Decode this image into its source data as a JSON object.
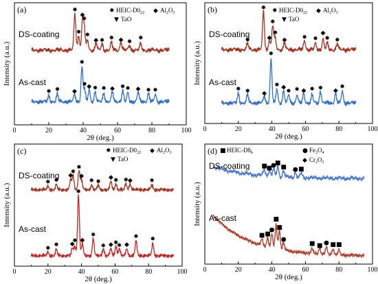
{
  "figure": {
    "title": ""
  },
  "chart_data": [
    {
      "panel": "(a)",
      "type": "line",
      "xlabel": "2θ (deg.)",
      "ylabel": "Intensity (a.u.)",
      "xlim": [
        0,
        100
      ],
      "xticks": [
        "0",
        "20",
        "40",
        "60",
        "80",
        "100"
      ],
      "legend": [
        {
          "symbol": "✸",
          "text": "HEIC-D0",
          "sub": "22"
        },
        {
          "symbol": "◆",
          "text": "Al",
          "sub": "2",
          "text2": "O",
          "sub2": "3"
        },
        {
          "symbol": "▼",
          "text": "TaO"
        }
      ],
      "series": [
        {
          "name": "DS-coating",
          "color": "#a8321e",
          "offset": 0.6,
          "x_range": [
            10,
            90
          ],
          "peaks": [
            [
              35.2,
              0.3
            ],
            [
              37.4,
              0.12
            ],
            [
              39.6,
              0.22
            ],
            [
              40.6,
              0.18
            ],
            [
              42.5,
              0.08
            ],
            [
              47.5,
              0.06
            ],
            [
              51.0,
              0.05
            ],
            [
              56.5,
              0.06
            ],
            [
              62.0,
              0.07
            ],
            [
              67.0,
              0.04
            ],
            [
              73.5,
              0.05
            ]
          ],
          "background": 0.06
        },
        {
          "name": "As-cast",
          "color": "#2f6fd0",
          "offset": 0.18,
          "x_range": [
            10,
            90
          ],
          "peaks": [
            [
              20.0,
              0.05
            ],
            [
              25.0,
              0.06
            ],
            [
              35.0,
              0.06
            ],
            [
              39.3,
              0.28
            ],
            [
              40.8,
              0.1
            ],
            [
              43.5,
              0.1
            ],
            [
              47.0,
              0.08
            ],
            [
              52.0,
              0.07
            ],
            [
              57.0,
              0.08
            ],
            [
              63.0,
              0.09
            ],
            [
              66.0,
              0.07
            ],
            [
              72.0,
              0.08
            ],
            [
              78.0,
              0.07
            ],
            [
              82.0,
              0.06
            ]
          ],
          "background": 0.05
        }
      ]
    },
    {
      "panel": "(b)",
      "type": "line",
      "xlabel": "2θ (deg.)",
      "ylabel": "Intensity (a.u.)",
      "xlim": [
        0,
        100
      ],
      "xticks": [
        "0",
        "20",
        "40",
        "60",
        "80",
        "100"
      ],
      "legend": [
        {
          "symbol": "✸",
          "text": "HEIC-D0",
          "sub": "22"
        },
        {
          "symbol": "◆",
          "text": "Al",
          "sub": "2",
          "text2": "O",
          "sub2": "3"
        },
        {
          "symbol": "▼",
          "text": "TaO"
        }
      ],
      "series": [
        {
          "name": "DS-coating",
          "color": "#a8321e",
          "offset": 0.6,
          "x_range": [
            10,
            90
          ],
          "peaks": [
            [
              25.5,
              0.05
            ],
            [
              35.0,
              0.32
            ],
            [
              38.5,
              0.08
            ],
            [
              40.5,
              0.2
            ],
            [
              42.0,
              0.09
            ],
            [
              47.5,
              0.06
            ],
            [
              59.5,
              0.08
            ],
            [
              66.0,
              0.05
            ],
            [
              70.5,
              0.09
            ],
            [
              73.0,
              0.05
            ],
            [
              79.0,
              0.05
            ]
          ],
          "background": 0.06
        },
        {
          "name": "As-cast",
          "color": "#2f6fd0",
          "offset": 0.16,
          "x_range": [
            10,
            90
          ],
          "peaks": [
            [
              20.0,
              0.08
            ],
            [
              25.5,
              0.07
            ],
            [
              35.5,
              0.06
            ],
            [
              39.5,
              0.36
            ],
            [
              43.0,
              0.12
            ],
            [
              47.0,
              0.1
            ],
            [
              50.0,
              0.07
            ],
            [
              55.0,
              0.07
            ],
            [
              59.0,
              0.08
            ],
            [
              64.0,
              0.07
            ],
            [
              69.0,
              0.1
            ],
            [
              78.0,
              0.08
            ],
            [
              82.0,
              0.1
            ]
          ],
          "background": 0.05
        }
      ]
    },
    {
      "panel": "(c)",
      "type": "line",
      "xlabel": "2θ (deg.)",
      "ylabel": "Intensity (a.u.)",
      "xlim": [
        0,
        100
      ],
      "xticks": [
        "0",
        "20",
        "40",
        "60",
        "80",
        "100"
      ],
      "legend": [
        {
          "symbol": "✸",
          "text": "HEIC-D0",
          "sub": "22"
        },
        {
          "symbol": "◆",
          "text": "Al",
          "sub": "2",
          "text2": "O",
          "sub2": "3"
        },
        {
          "symbol": "▼",
          "text": "TaO"
        }
      ],
      "series": [
        {
          "name": "DS-coating",
          "color": "#a8321e",
          "offset": 0.62,
          "x_range": [
            10,
            95
          ],
          "peaks": [
            [
              20.0,
              0.03
            ],
            [
              25.0,
              0.04
            ],
            [
              33.5,
              0.08
            ],
            [
              35.0,
              0.12
            ],
            [
              38.5,
              0.16
            ],
            [
              40.0,
              0.08
            ],
            [
              46.0,
              0.04
            ],
            [
              50.0,
              0.04
            ],
            [
              57.5,
              0.07
            ],
            [
              60.5,
              0.05
            ],
            [
              66.5,
              0.05
            ],
            [
              69.0,
              0.05
            ],
            [
              82.0,
              0.04
            ]
          ],
          "background": 0.03
        },
        {
          "name": "As-cast",
          "color": "#cc1f1f",
          "offset": 0.08,
          "x_range": [
            10,
            95
          ],
          "peaks": [
            [
              20.0,
              0.03
            ],
            [
              25.0,
              0.05
            ],
            [
              34.5,
              0.06
            ],
            [
              36.0,
              0.08
            ],
            [
              38.2,
              0.5
            ],
            [
              40.5,
              0.1
            ],
            [
              47.0,
              0.14
            ],
            [
              53.0,
              0.06
            ],
            [
              57.5,
              0.06
            ],
            [
              60.5,
              0.08
            ],
            [
              62.5,
              0.06
            ],
            [
              67.0,
              0.06
            ],
            [
              72.5,
              0.12
            ],
            [
              82.5,
              0.1
            ]
          ],
          "background": 0.03
        }
      ]
    },
    {
      "panel": "(d)",
      "type": "line",
      "xlabel": "2θ (deg.)",
      "ylabel": "Intensity (a.u.)",
      "xlim": [
        0,
        100
      ],
      "xticks": [
        "0",
        "20",
        "40",
        "60",
        "80",
        "100"
      ],
      "legend": [
        {
          "symbol": "■",
          "text": "HEIC-D8",
          "sub": "b"
        },
        {
          "symbol": "●",
          "text": "Fe",
          "sub": "3",
          "text2": "O",
          "sub2": "4"
        },
        {
          "symbol": "◆",
          "text": "Cr",
          "sub": "2",
          "text2": "O",
          "sub2": "3"
        }
      ],
      "series": [
        {
          "name": "DS-coating",
          "color": "#3a6fd8",
          "offset": 0.7,
          "x_range": [
            5,
            95
          ],
          "peaks": [
            [
              35.5,
              0.06
            ],
            [
              38.5,
              0.05
            ],
            [
              41.0,
              0.06
            ],
            [
              43.5,
              0.09
            ],
            [
              47.0,
              0.05
            ],
            [
              54.0,
              0.04
            ],
            [
              57.5,
              0.04
            ]
          ],
          "background": 0.06,
          "decay": 0.1
        },
        {
          "name": "As-cast",
          "color": "#b53320",
          "offset": 0.06,
          "x_range": [
            5,
            95
          ],
          "peaks": [
            [
              34.0,
              0.05
            ],
            [
              37.5,
              0.08
            ],
            [
              40.0,
              0.12
            ],
            [
              42.5,
              0.2
            ],
            [
              44.5,
              0.16
            ],
            [
              47.0,
              0.06
            ],
            [
              64.0,
              0.04
            ],
            [
              68.5,
              0.05
            ],
            [
              72.5,
              0.06
            ],
            [
              76.5,
              0.05
            ],
            [
              80.0,
              0.04
            ]
          ],
          "background": 0.03,
          "decay": 0.34
        }
      ]
    }
  ]
}
